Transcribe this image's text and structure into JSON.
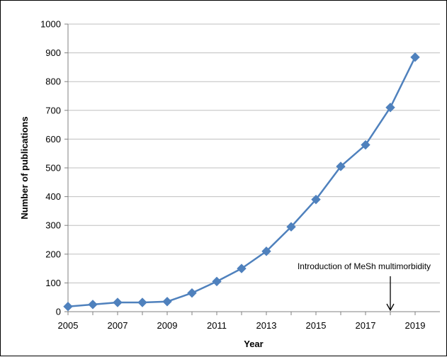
{
  "chart_data": {
    "type": "line",
    "title": "",
    "xlabel": "Year",
    "ylabel": "Number  of publications",
    "x": [
      2005,
      2006,
      2007,
      2008,
      2009,
      2010,
      2011,
      2012,
      2013,
      2014,
      2015,
      2016,
      2017,
      2018,
      2019
    ],
    "series": [
      {
        "values": [
          18,
          25,
          32,
          32,
          35,
          65,
          105,
          150,
          210,
          295,
          390,
          505,
          580,
          710,
          885
        ],
        "color": "#4F81BD",
        "marker": "diamond"
      }
    ],
    "xlim": [
      2005,
      2019
    ],
    "ylim": [
      0,
      1000
    ],
    "x_ticks": [
      2005,
      2007,
      2009,
      2011,
      2013,
      2015,
      2017,
      2019
    ],
    "y_ticks": [
      0,
      100,
      200,
      300,
      400,
      500,
      600,
      700,
      800,
      900,
      1000
    ],
    "grid": "horizontal",
    "legend": "none",
    "annotations": [
      {
        "text": "Introduction of MeSh multimorbidity",
        "x": 2018,
        "y": 0,
        "arrow": "down"
      }
    ]
  }
}
